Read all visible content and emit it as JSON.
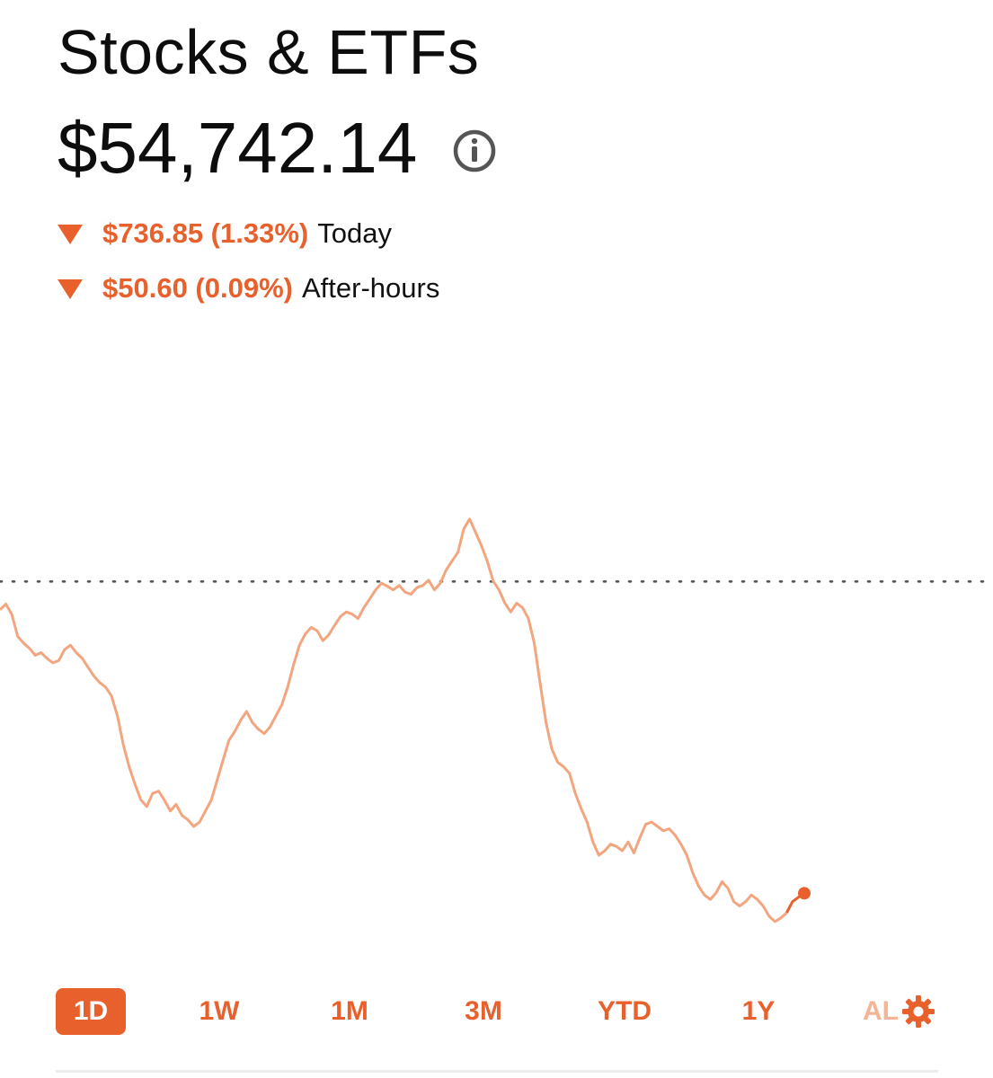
{
  "header": {
    "title": "Stocks & ETFs",
    "value": "$54,742.14"
  },
  "changes": {
    "today": {
      "amount": "$736.85 (1.33%)",
      "label": "Today",
      "direction": "down"
    },
    "after_hours": {
      "amount": "$50.60 (0.09%)",
      "label": "After-hours",
      "direction": "down"
    }
  },
  "icons": {
    "info": "info-icon",
    "down": "down-triangle-icon",
    "settings": "gear-icon"
  },
  "colors": {
    "accent": "#e8602c",
    "line": "#f2a57e",
    "line_recent": "#e8602c",
    "reference": "#555555"
  },
  "ranges": {
    "r1d": "1D",
    "r1w": "1W",
    "r1m": "1M",
    "r3m": "3M",
    "ytd": "YTD",
    "r1y": "1Y",
    "all": "AL",
    "selected": "1D"
  },
  "chart_data": {
    "type": "line",
    "reference_line": 55478.99,
    "ylim": [
      54600,
      55900
    ],
    "grid": false,
    "values": [
      55415,
      55428,
      55405,
      55355,
      55340,
      55328,
      55312,
      55318,
      55305,
      55295,
      55300,
      55325,
      55335,
      55318,
      55305,
      55285,
      55265,
      55250,
      55240,
      55220,
      55175,
      55110,
      55060,
      55020,
      54985,
      54970,
      55000,
      55005,
      54985,
      54960,
      54975,
      54950,
      54940,
      54925,
      54935,
      54960,
      54985,
      55030,
      55075,
      55120,
      55140,
      55165,
      55185,
      55160,
      55145,
      55135,
      55150,
      55175,
      55200,
      55240,
      55290,
      55335,
      55360,
      55375,
      55368,
      55345,
      55358,
      55380,
      55400,
      55410,
      55405,
      55395,
      55420,
      55440,
      55460,
      55475,
      55468,
      55460,
      55470,
      55455,
      55450,
      55465,
      55470,
      55482,
      55460,
      55475,
      55505,
      55525,
      55545,
      55598,
      55620,
      55590,
      55560,
      55525,
      55480,
      55460,
      55430,
      55410,
      55430,
      55420,
      55395,
      55340,
      55250,
      55160,
      55100,
      55070,
      55060,
      55045,
      55000,
      54965,
      54935,
      54890,
      54860,
      54870,
      54885,
      54880,
      54870,
      54890,
      54865,
      54900,
      54930,
      54935,
      54925,
      54915,
      54920,
      54905,
      54885,
      54860,
      54820,
      54790,
      54770,
      54760,
      54775,
      54800,
      54785,
      54755,
      54745,
      54755,
      54770,
      54760,
      54745,
      54722,
      54710,
      54718,
      54730,
      54755,
      54765,
      54774
    ]
  }
}
